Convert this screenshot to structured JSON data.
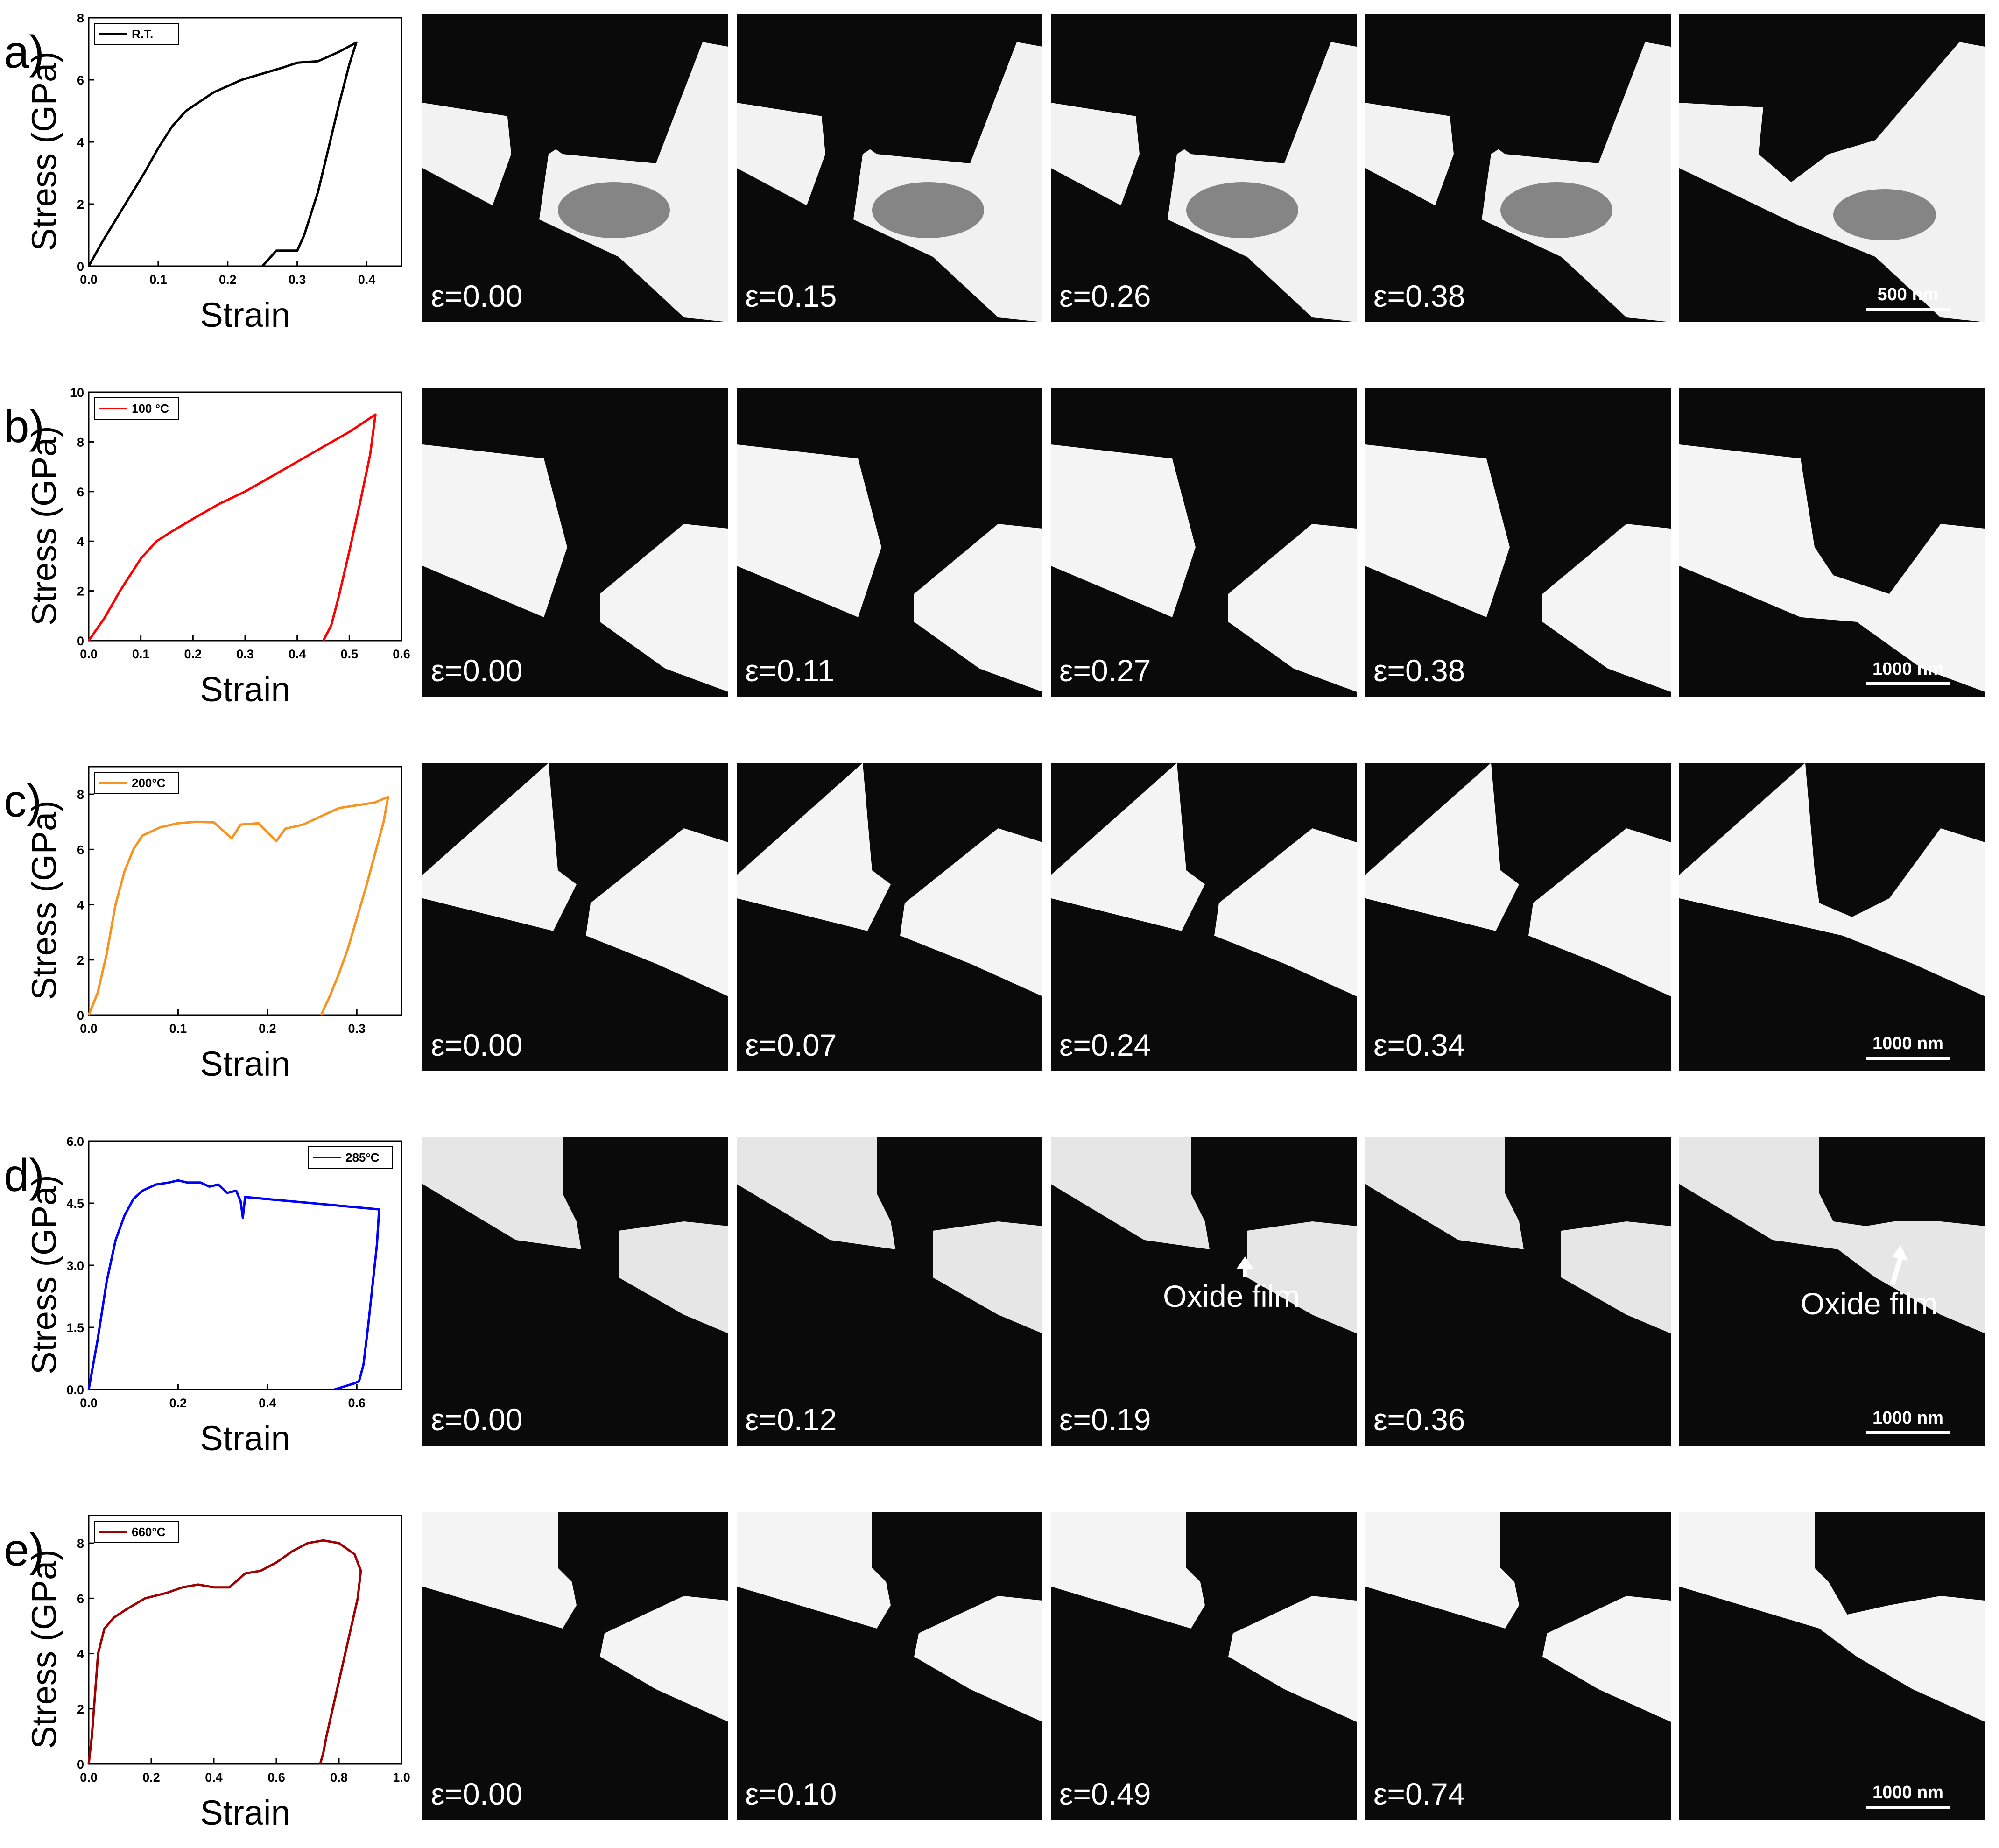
{
  "figure": {
    "rows": [
      {
        "label": "a)",
        "panel_strains": [
          "ε=0.00",
          "ε=0.15",
          "ε=0.26",
          "ε=0.38"
        ],
        "scale_bar": "500 nm",
        "annotations": []
      },
      {
        "label": "b)",
        "panel_strains": [
          "ε=0.00",
          "ε=0.11",
          "ε=0.27",
          "ε=0.38"
        ],
        "scale_bar": "1000 nm",
        "annotations": []
      },
      {
        "label": "c)",
        "panel_strains": [
          "ε=0.00",
          "ε=0.07",
          "ε=0.24",
          "ε=0.34"
        ],
        "scale_bar": "1000 nm",
        "annotations": []
      },
      {
        "label": "d)",
        "panel_strains": [
          "ε=0.00",
          "ε=0.12",
          "ε=0.19",
          "ε=0.36"
        ],
        "scale_bar": "1000 nm",
        "annotations": [
          "Oxide film",
          "Oxide film"
        ]
      },
      {
        "label": "e)",
        "panel_strains": [
          "ε=0.00",
          "ε=0.10",
          "ε=0.49",
          "ε=0.74"
        ],
        "scale_bar": "1000 nm",
        "annotations": []
      }
    ]
  },
  "chart_data": [
    {
      "type": "line",
      "legend": "R.T.",
      "color": "#000000",
      "xlabel": "Strain",
      "ylabel": "Stress (GPa)",
      "xlim": [
        0,
        0.45
      ],
      "ylim": [
        0,
        8
      ],
      "xticks": [
        0,
        0.1,
        0.2,
        0.3,
        0.4
      ],
      "xtick_labels": [
        "0.0",
        "0.1",
        "0.2",
        "0.3",
        "0.4"
      ],
      "yticks": [
        0,
        2,
        4,
        6,
        8
      ],
      "ytick_labels": [
        "0",
        "2",
        "4",
        "6",
        "8"
      ],
      "x": [
        0,
        0.02,
        0.05,
        0.08,
        0.1,
        0.12,
        0.14,
        0.16,
        0.18,
        0.2,
        0.22,
        0.25,
        0.28,
        0.3,
        0.33,
        0.36,
        0.385,
        0.375,
        0.36,
        0.345,
        0.33,
        0.31,
        0.3,
        0.27,
        0.25
      ],
      "y": [
        0,
        0.8,
        1.9,
        3.0,
        3.8,
        4.5,
        5.0,
        5.3,
        5.6,
        5.8,
        6.0,
        6.2,
        6.4,
        6.55,
        6.6,
        6.9,
        7.2,
        6.5,
        5.2,
        3.8,
        2.4,
        1.0,
        0.5,
        0.5,
        0
      ]
    },
    {
      "type": "line",
      "legend": "100 °C",
      "color": "#ff0000",
      "xlabel": "Strain",
      "ylabel": "Stress (GPa)",
      "xlim": [
        0,
        0.6
      ],
      "ylim": [
        0,
        10
      ],
      "xticks": [
        0,
        0.1,
        0.2,
        0.3,
        0.4,
        0.5,
        0.6
      ],
      "xtick_labels": [
        "0.0",
        "0.1",
        "0.2",
        "0.3",
        "0.4",
        "0.5",
        "0.6"
      ],
      "yticks": [
        0,
        2,
        4,
        6,
        8,
        10
      ],
      "ytick_labels": [
        "0",
        "2",
        "4",
        "6",
        "8",
        "10"
      ],
      "x": [
        0,
        0.03,
        0.06,
        0.1,
        0.13,
        0.16,
        0.2,
        0.25,
        0.3,
        0.35,
        0.4,
        0.45,
        0.5,
        0.55,
        0.54,
        0.52,
        0.5,
        0.48,
        0.465,
        0.45
      ],
      "y": [
        0,
        0.9,
        2.0,
        3.3,
        4.0,
        4.4,
        4.9,
        5.5,
        6.0,
        6.6,
        7.2,
        7.8,
        8.4,
        9.1,
        7.5,
        5.5,
        3.6,
        1.8,
        0.6,
        0
      ]
    },
    {
      "type": "line",
      "legend": "200°C",
      "color": "#f7931e",
      "xlabel": "Strain",
      "ylabel": "Stress (GPa)",
      "xlim": [
        0,
        0.35
      ],
      "ylim": [
        0,
        9
      ],
      "xticks": [
        0,
        0.1,
        0.2,
        0.3
      ],
      "xtick_labels": [
        "0.0",
        "0.1",
        "0.2",
        "0.3"
      ],
      "yticks": [
        0,
        2,
        4,
        6,
        8
      ],
      "ytick_labels": [
        "0",
        "2",
        "4",
        "6",
        "8"
      ],
      "x": [
        0,
        0.01,
        0.02,
        0.03,
        0.04,
        0.05,
        0.06,
        0.08,
        0.1,
        0.12,
        0.14,
        0.16,
        0.17,
        0.19,
        0.21,
        0.22,
        0.24,
        0.26,
        0.28,
        0.3,
        0.32,
        0.335,
        0.33,
        0.32,
        0.31,
        0.3,
        0.29,
        0.28,
        0.27,
        0.26
      ],
      "y": [
        0,
        0.8,
        2.2,
        4.0,
        5.2,
        6.0,
        6.5,
        6.8,
        6.95,
        7.0,
        6.98,
        6.4,
        6.9,
        6.95,
        6.3,
        6.75,
        6.9,
        7.2,
        7.5,
        7.6,
        7.7,
        7.9,
        7.0,
        5.8,
        4.6,
        3.5,
        2.4,
        1.5,
        0.7,
        0
      ]
    },
    {
      "type": "line",
      "legend": "285°C",
      "color": "#0000ff",
      "xlabel": "Strain",
      "ylabel": "Stress (GPa)",
      "xlim": [
        0,
        0.7
      ],
      "ylim": [
        0,
        6
      ],
      "xticks": [
        0,
        0.2,
        0.4,
        0.6
      ],
      "xtick_labels": [
        "0.0",
        "0.2",
        "0.4",
        "0.6"
      ],
      "yticks": [
        0,
        1.5,
        3.0,
        4.5,
        6.0
      ],
      "ytick_labels": [
        "0.0",
        "1.5",
        "3.0",
        "4.5",
        "6.0"
      ],
      "x": [
        0,
        0.02,
        0.04,
        0.06,
        0.08,
        0.1,
        0.12,
        0.15,
        0.18,
        0.2,
        0.22,
        0.25,
        0.27,
        0.29,
        0.31,
        0.33,
        0.34,
        0.345,
        0.35,
        0.45,
        0.55,
        0.65,
        0.645,
        0.635,
        0.625,
        0.615,
        0.605,
        0.595,
        0.58,
        0.55
      ],
      "y": [
        0,
        1.2,
        2.6,
        3.6,
        4.2,
        4.6,
        4.8,
        4.95,
        5.0,
        5.05,
        5.0,
        5.0,
        4.9,
        4.95,
        4.75,
        4.8,
        4.55,
        4.15,
        4.65,
        4.55,
        4.45,
        4.35,
        3.5,
        2.5,
        1.5,
        0.6,
        0.2,
        0.15,
        0.1,
        0
      ]
    },
    {
      "type": "line",
      "legend": "660°C",
      "color": "#a00000",
      "xlabel": "Strain",
      "ylabel": "Stress (GPa)",
      "xlim": [
        0,
        1.0
      ],
      "ylim": [
        0,
        9
      ],
      "xticks": [
        0,
        0.2,
        0.4,
        0.6,
        0.8,
        1.0
      ],
      "xtick_labels": [
        "0.0",
        "0.2",
        "0.4",
        "0.6",
        "0.8",
        "1.0"
      ],
      "yticks": [
        0,
        2,
        4,
        6,
        8
      ],
      "ytick_labels": [
        "0",
        "2",
        "4",
        "6",
        "8"
      ],
      "x": [
        0,
        0.01,
        0.02,
        0.03,
        0.05,
        0.08,
        0.12,
        0.18,
        0.25,
        0.3,
        0.35,
        0.4,
        0.45,
        0.5,
        0.55,
        0.6,
        0.65,
        0.7,
        0.75,
        0.8,
        0.85,
        0.87,
        0.86,
        0.84,
        0.82,
        0.8,
        0.78,
        0.76,
        0.75,
        0.74
      ],
      "y": [
        0,
        1.0,
        2.5,
        4.0,
        4.9,
        5.3,
        5.6,
        6.0,
        6.2,
        6.4,
        6.5,
        6.4,
        6.4,
        6.9,
        7.0,
        7.3,
        7.7,
        8.0,
        8.1,
        8.0,
        7.6,
        7.0,
        6.0,
        5.0,
        4.0,
        3.0,
        2.0,
        1.0,
        0.4,
        0
      ]
    }
  ]
}
